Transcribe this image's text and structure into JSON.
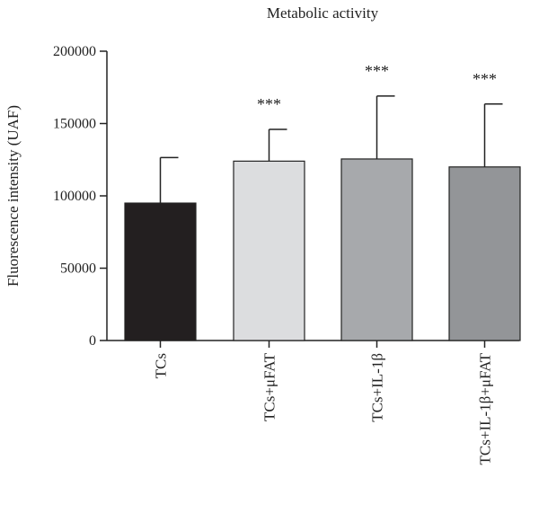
{
  "chart_data": {
    "type": "bar",
    "title": "Metabolic activity",
    "xlabel": "",
    "ylabel": "Fluorescence intensity (UAF)",
    "ylim": [
      0,
      200000
    ],
    "yticks": [
      0,
      50000,
      100000,
      150000,
      200000
    ],
    "ytick_labels": [
      "0",
      "50000",
      "100000",
      "150000",
      "200000"
    ],
    "categories": [
      "TCs",
      "TCs+μFAT",
      "TCs+IL-1β",
      "TCs+IL-1β+μFAT"
    ],
    "values": [
      95000,
      124000,
      125500,
      120000
    ],
    "error_upper": [
      126500,
      146000,
      169000,
      163500
    ],
    "annotations": [
      "",
      "***",
      "***",
      "***"
    ],
    "colors": [
      "#231f20",
      "#dcdddf",
      "#a7a9ac",
      "#939598"
    ],
    "grid": false,
    "legend": "none"
  }
}
